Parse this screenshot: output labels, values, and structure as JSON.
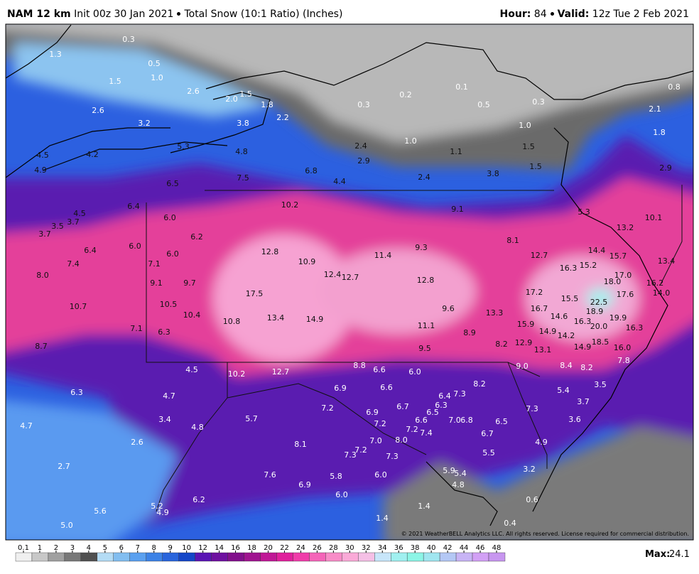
{
  "header": {
    "model": "NAM 12 km",
    "init": "Init 00z 30 Jan 2021",
    "product": "Total Snow (10:1 Ratio) (Inches)",
    "hour_label": "Hour:",
    "hour": "84",
    "valid_label": "Valid:",
    "valid": "12z Tue 2 Feb 2021"
  },
  "map": {
    "labels": [
      "0.3",
      "1.3",
      "0.5",
      "1.0",
      "1.5",
      "2.6",
      "2.0",
      "1.5",
      "1.8",
      "2.2",
      "0.2",
      "0.1",
      "0.3",
      "0.5",
      "0.3",
      "0.8",
      "2.1",
      "1.8",
      "1.0",
      "2.6",
      "3.2",
      "3.8",
      "5.3",
      "4.8",
      "2.4",
      "1.0",
      "1.1",
      "1.5",
      "2.9",
      "1.5",
      "2.9",
      "4.5",
      "4.2",
      "4.9",
      "7.5",
      "6.8",
      "4.4",
      "2.4",
      "3.8",
      "6.5",
      "6.4",
      "10.2",
      "9.1",
      "5.3",
      "10.1",
      "13.2",
      "4.5",
      "3.5",
      "3.7",
      "3.7",
      "6.0",
      "6.2",
      "8.1",
      "6.4",
      "6.0",
      "6.0",
      "12.8",
      "9.3",
      "11.4",
      "14.4",
      "15.7",
      "13.4",
      "7.4",
      "7.1",
      "10.9",
      "12.7",
      "16.3",
      "15.2",
      "8.0",
      "12.4",
      "12.7",
      "17.0",
      "18.0",
      "9.1",
      "9.7",
      "12.8",
      "16.2",
      "17.5",
      "17.2",
      "17.6",
      "14.0",
      "10.7",
      "10.5",
      "15.5",
      "22.5",
      "16.7",
      "9.6",
      "13.3",
      "18.9",
      "10.4",
      "13.4",
      "14.9",
      "10.8",
      "14.6",
      "19.9",
      "16.3",
      "15.9",
      "20.0",
      "11.1",
      "6.3",
      "7.1",
      "14.9",
      "14.2",
      "8.9",
      "16.3",
      "18.5",
      "12.9",
      "8.7",
      "8.2",
      "9.5",
      "13.1",
      "14.9",
      "16.0",
      "7.8",
      "8.4",
      "8.2",
      "4.5",
      "10.2",
      "12.7",
      "8.8",
      "6.6",
      "6.0",
      "9.0",
      "6.9",
      "6.6",
      "8.2",
      "5.4",
      "3.5",
      "6.3",
      "4.7",
      "6.4",
      "7.3",
      "7.2",
      "6.9",
      "6.7",
      "6.5",
      "6.3",
      "7.3",
      "3.7",
      "4.7",
      "3.4",
      "5.7",
      "4.8",
      "7.2",
      "6.6",
      "7.0",
      "6.8",
      "6.5",
      "3.6",
      "7.4",
      "7.2",
      "6.7",
      "2.6",
      "8.1",
      "7.0",
      "8.0",
      "7.2",
      "7.3",
      "7.3",
      "4.9",
      "5.5",
      "2.7",
      "7.6",
      "5.8",
      "6.0",
      "5.9",
      "5.4",
      "3.2",
      "6.9",
      "4.8",
      "6.0",
      "6.2",
      "0.6",
      "1.4",
      "5.2",
      "4.9",
      "5.6",
      "1.4",
      "0.4",
      "5.0"
    ],
    "copyright": "© 2021 WeatherBELL Analytics LLC. All rights reserved. License required for commercial distribution."
  },
  "colorbar": {
    "ticks": [
      0.1,
      1,
      2,
      3,
      4,
      5,
      6,
      7,
      8,
      9,
      10,
      12,
      14,
      16,
      18,
      20,
      22,
      24,
      26,
      28,
      30,
      32,
      34,
      36,
      38,
      40,
      42,
      44,
      46,
      48
    ],
    "colors": [
      "#f0f0f0",
      "#c8c8c8",
      "#a0a0a0",
      "#787878",
      "#505050",
      "#b4dcf5",
      "#82bef0",
      "#5aa0f0",
      "#3c82e6",
      "#2864dc",
      "#1446c8",
      "#5a14b4",
      "#6e10a0",
      "#82108c",
      "#a01490",
      "#c01896",
      "#e0209c",
      "#f03caa",
      "#f564b9",
      "#f88cc8",
      "#faaad8",
      "#f5c0e6",
      "#c8e6fa",
      "#a0f0f0",
      "#8cf5e6",
      "#a0e6f0",
      "#b4c8f5",
      "#c8b4f5",
      "#d2a0f5",
      "#c896f0"
    ],
    "max_label": "Max:",
    "max": 24.1
  }
}
